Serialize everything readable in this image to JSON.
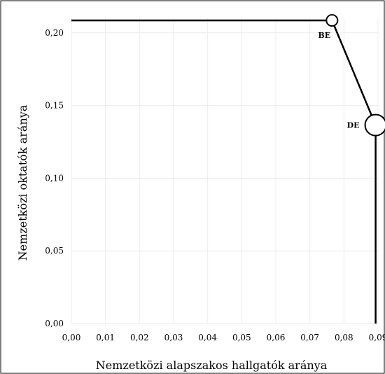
{
  "chart_data": {
    "type": "scatter",
    "xlabel": "Nemzetközi alapszakos hallgatók aránya",
    "ylabel": "Nemzetközi oktatók aránya",
    "xlim": [
      0,
      0.09
    ],
    "ylim": [
      0,
      0.21
    ],
    "x_ticks": [
      0,
      0.01,
      0.02,
      0.03,
      0.04,
      0.05,
      0.06,
      0.07,
      0.08,
      0.09
    ],
    "y_ticks": [
      0,
      0.05,
      0.1,
      0.15,
      0.2
    ],
    "x_tick_labels": [
      "0,00",
      "0,01",
      "0,02",
      "0,03",
      "0,04",
      "0,05",
      "0,06",
      "0,07",
      "0,08",
      "0,09"
    ],
    "y_tick_labels": [
      "0,00",
      "0,05",
      "0,10",
      "0,15",
      "0,20"
    ],
    "grid": true,
    "points": [
      {
        "label": "BE",
        "x": 0.0765,
        "y": 0.2085,
        "size": "small"
      },
      {
        "label": "DE",
        "x": 0.0893,
        "y": 0.1365,
        "size": "large"
      }
    ],
    "frontier": [
      [
        0,
        0.2085
      ],
      [
        0.0765,
        0.2085
      ],
      [
        0.0893,
        0.1365
      ],
      [
        0.0893,
        0
      ]
    ],
    "colors": {
      "line": "#000000",
      "grid": "#ececec",
      "frame": "#000000",
      "marker_fill": "#ffffff"
    }
  }
}
